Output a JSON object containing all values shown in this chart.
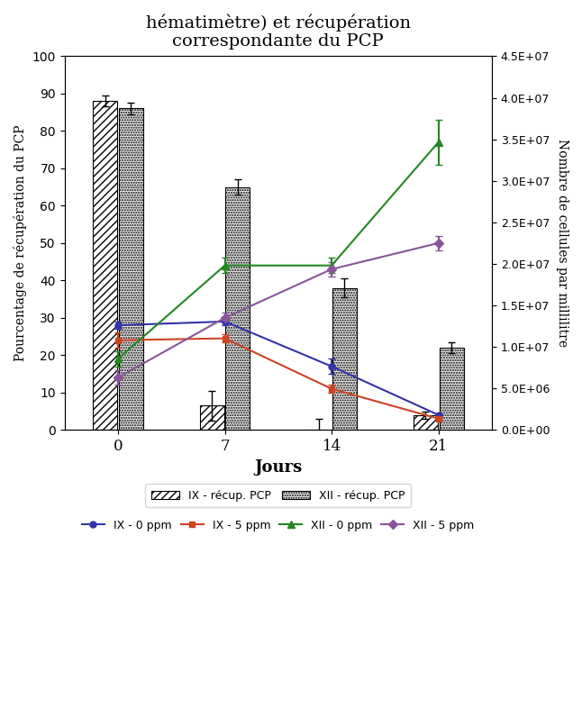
{
  "title": "hématimètre) et récupération\ncorrespondante du PCP",
  "xlabel": "Jours",
  "ylabel_left": "Pourcentage de récupération du PCP",
  "ylabel_right": "Nombre de cellules par millilitre",
  "days": [
    0,
    7,
    14,
    21
  ],
  "IX_recup_PCP": [
    88,
    6.5,
    0,
    4
  ],
  "IX_recup_PCP_err": [
    1.5,
    4,
    3,
    1
  ],
  "XII_recup_PCP": [
    86,
    65,
    38,
    22
  ],
  "XII_recup_PCP_err": [
    1.5,
    2,
    2.5,
    1.5
  ],
  "IX_0ppm_pct": [
    28,
    29,
    17,
    4
  ],
  "IX_0ppm_err_pct": [
    1,
    1,
    2,
    0.5
  ],
  "IX_5ppm_pct": [
    24,
    24.5,
    11,
    3
  ],
  "IX_5ppm_err_pct": [
    2,
    1,
    1,
    0.5
  ],
  "XII_0ppm_pct": [
    19,
    44,
    44,
    77
  ],
  "XII_0ppm_err_pct": [
    2,
    2,
    2,
    6
  ],
  "XII_5ppm_pct": [
    14,
    30,
    43,
    50
  ],
  "XII_5ppm_err_pct": [
    2,
    1.5,
    2,
    2
  ],
  "color_IX_0ppm": "#3333aa",
  "color_IX_5ppm": "#cc4422",
  "color_XII_0ppm": "#228822",
  "color_XII_5ppm": "#885599",
  "ylim_left": [
    0,
    100
  ],
  "right_yticks": [
    0,
    5000000,
    10000000,
    15000000,
    20000000,
    25000000,
    30000000,
    35000000,
    40000000,
    45000000
  ],
  "right_yticklabels": [
    "0.0E+00",
    "5.0E+06",
    "1.0E+07",
    "1.5E+07",
    "2.0E+07",
    "2.5E+07",
    "3.0E+07",
    "3.5E+07",
    "4.0E+07",
    "4.5E+07"
  ]
}
